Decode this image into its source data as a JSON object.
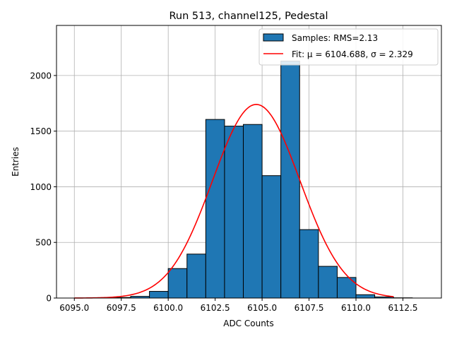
{
  "chart_data": {
    "type": "bar",
    "title": "Run 513, channel125, Pedestal",
    "xlabel": "ADC Counts",
    "ylabel": "Entries",
    "xlim": [
      6094.05,
      6114.55
    ],
    "ylim": [
      0,
      2450
    ],
    "xticks": [
      6095.0,
      6097.5,
      6100.0,
      6102.5,
      6105.0,
      6107.5,
      6110.0,
      6112.5
    ],
    "xtick_labels": [
      "6095.0",
      "6097.5",
      "6100.0",
      "6102.5",
      "6105.0",
      "6107.5",
      "6110.0",
      "6112.5"
    ],
    "yticks": [
      0,
      500,
      1000,
      1500,
      2000
    ],
    "ytick_labels": [
      "0",
      "500",
      "1000",
      "1500",
      "2000"
    ],
    "grid": true,
    "legend_position": "top-right",
    "bar_color": "#1f77b4",
    "fit_color": "#ff0000",
    "histogram": {
      "name": "Samples: RMS=2.13",
      "bins": [
        {
          "x0": 6097,
          "x1": 6098,
          "value": 5
        },
        {
          "x0": 6098,
          "x1": 6099,
          "value": 15
        },
        {
          "x0": 6099,
          "x1": 6100,
          "value": 60
        },
        {
          "x0": 6100,
          "x1": 6101,
          "value": 265
        },
        {
          "x0": 6101,
          "x1": 6102,
          "value": 395
        },
        {
          "x0": 6102,
          "x1": 6103,
          "value": 1605
        },
        {
          "x0": 6103,
          "x1": 6104,
          "value": 1545
        },
        {
          "x0": 6104,
          "x1": 6105,
          "value": 1560
        },
        {
          "x0": 6105,
          "x1": 6106,
          "value": 1100
        },
        {
          "x0": 6106,
          "x1": 6107,
          "value": 2130
        },
        {
          "x0": 6107,
          "x1": 6108,
          "value": 615
        },
        {
          "x0": 6108,
          "x1": 6109,
          "value": 285
        },
        {
          "x0": 6109,
          "x1": 6110,
          "value": 185
        },
        {
          "x0": 6110,
          "x1": 6111,
          "value": 30
        },
        {
          "x0": 6111,
          "x1": 6112,
          "value": 10
        },
        {
          "x0": 6112,
          "x1": 6113,
          "value": 2
        }
      ]
    },
    "fit": {
      "name": "Fit: μ = 6104.688, σ = 2.329",
      "mu": 6104.688,
      "sigma": 2.329,
      "amplitude": 1740,
      "x_range": [
        6095,
        6112
      ]
    }
  }
}
